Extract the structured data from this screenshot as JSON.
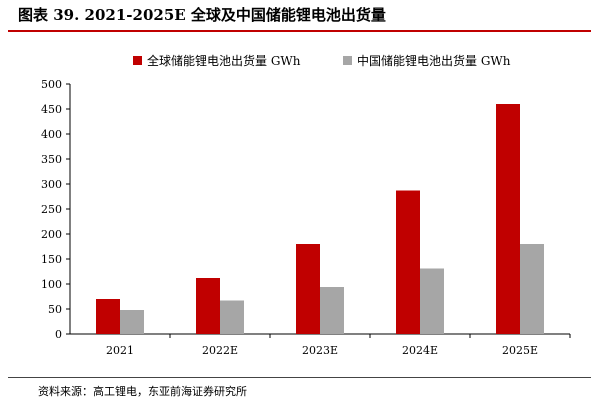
{
  "figure": {
    "title": "图表 39. 2021-2025E 全球及中国储能锂电池出货量",
    "source": "资料来源：高工锂电，东亚前海证券研究所",
    "accent_color": "#c00000"
  },
  "chart_data": {
    "type": "bar",
    "categories": [
      "2021",
      "2022E",
      "2023E",
      "2024E",
      "2025E"
    ],
    "series": [
      {
        "name": "全球储能锂电池出货量 GWh",
        "values": [
          70,
          112,
          180,
          287,
          460
        ],
        "color": "#c00000"
      },
      {
        "name": "中国储能锂电池出货量 GWh",
        "values": [
          48,
          67,
          94,
          131,
          180
        ],
        "color": "#a6a6a6"
      }
    ],
    "title": "",
    "xlabel": "",
    "ylabel": "",
    "ylim": [
      0,
      500
    ],
    "yticks": [
      0,
      50,
      100,
      150,
      200,
      250,
      300,
      350,
      400,
      450,
      500
    ],
    "grid": false,
    "legend_position": "top"
  }
}
